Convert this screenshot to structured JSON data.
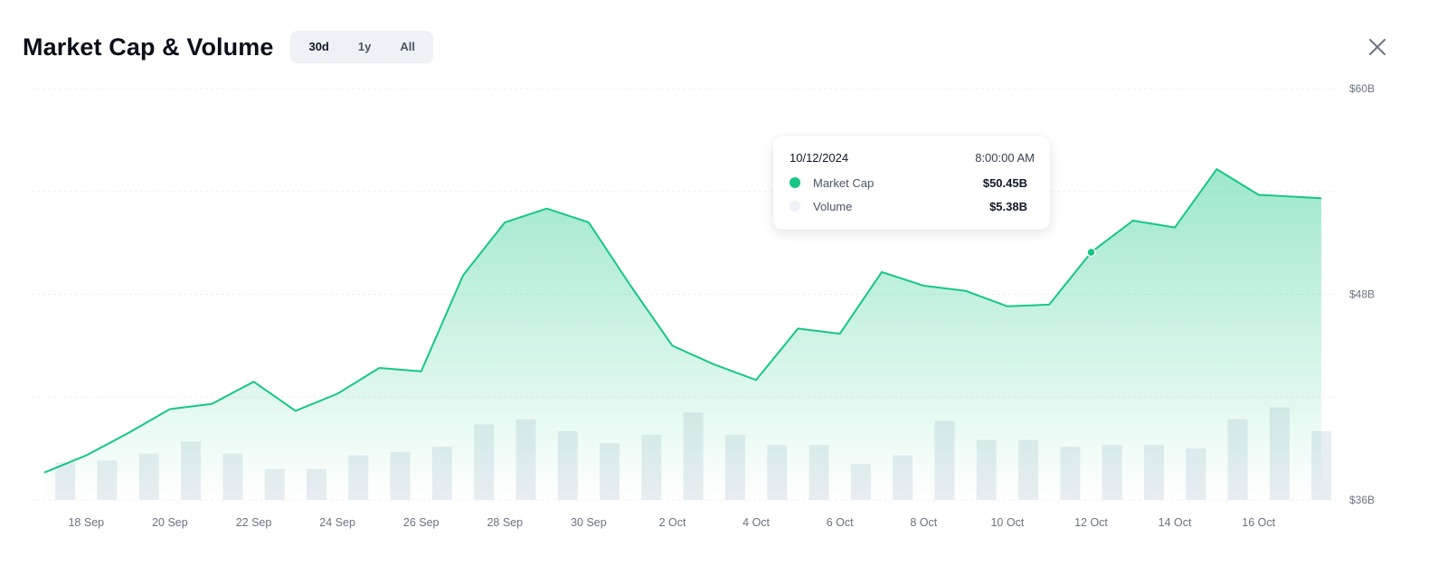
{
  "header": {
    "title": "Market Cap & Volume",
    "ranges": [
      "30d",
      "1y",
      "All"
    ],
    "active_range": "30d"
  },
  "tooltip": {
    "date": "10/12/2024",
    "time": "8:00:00 AM",
    "rows": [
      {
        "label": "Market Cap",
        "value": "$50.45B",
        "color": "#16c784"
      },
      {
        "label": "Volume",
        "value": "$5.38B",
        "color": "#eef1f6"
      }
    ]
  },
  "colors": {
    "line": "#16c784",
    "volume_bar": "#e8edf2",
    "grid": "#eef0f3"
  },
  "chart_data": {
    "type": "line",
    "title": "Market Cap & Volume",
    "y_axis": {
      "min": 36,
      "max": 60,
      "unit": "B",
      "ticks": [
        "$60B",
        "$48B",
        "$36B"
      ],
      "tick_values": [
        60,
        48,
        36
      ],
      "position": "right"
    },
    "x_tick_labels": [
      "18 Sep",
      "20 Sep",
      "22 Sep",
      "24 Sep",
      "26 Sep",
      "28 Sep",
      "30 Sep",
      "2 Oct",
      "4 Oct",
      "6 Oct",
      "8 Oct",
      "10 Oct",
      "12 Oct",
      "14 Oct",
      "16 Oct"
    ],
    "x_tick_days": [
      1,
      3,
      5,
      7,
      9,
      11,
      13,
      15,
      17,
      19,
      21,
      23,
      25,
      27,
      29
    ],
    "series": [
      {
        "name": "Market Cap",
        "days": [
          0,
          1,
          2,
          3,
          4,
          5,
          6,
          7,
          8,
          9,
          10,
          11,
          12,
          13,
          14,
          15,
          16,
          17,
          18,
          19,
          20,
          21,
          22,
          23,
          24,
          25,
          26,
          27,
          28,
          29,
          30.5
        ],
        "values": [
          37.6,
          38.6,
          39.9,
          41.3,
          41.6,
          42.9,
          41.2,
          42.2,
          43.7,
          43.5,
          49.1,
          52.2,
          53.0,
          52.2,
          48.5,
          45.0,
          43.9,
          43.0,
          46.0,
          45.7,
          49.3,
          48.5,
          48.2,
          47.3,
          47.4,
          50.45,
          52.3,
          51.9,
          55.3,
          53.8,
          53.6
        ],
        "highlight_day": 25
      },
      {
        "name": "Volume",
        "days": [
          0.5,
          1.5,
          2.5,
          3.5,
          4.5,
          5.5,
          6.5,
          7.5,
          8.5,
          9.5,
          10.5,
          11.5,
          12.5,
          13.5,
          14.5,
          15.5,
          16.5,
          17.5,
          18.5,
          19.5,
          20.5,
          21.5,
          22.5,
          23.5,
          24.5,
          25.5,
          26.5,
          27.5,
          28.5,
          29.5,
          30.5
        ],
        "relative_values": [
          0.22,
          0.23,
          0.27,
          0.34,
          0.27,
          0.18,
          0.18,
          0.26,
          0.28,
          0.31,
          0.44,
          0.47,
          0.4,
          0.33,
          0.38,
          0.51,
          0.38,
          0.32,
          0.32,
          0.21,
          0.26,
          0.46,
          0.35,
          0.35,
          0.31,
          0.32,
          0.32,
          0.3,
          0.47,
          0.54,
          0.4
        ]
      }
    ],
    "grid": true
  }
}
